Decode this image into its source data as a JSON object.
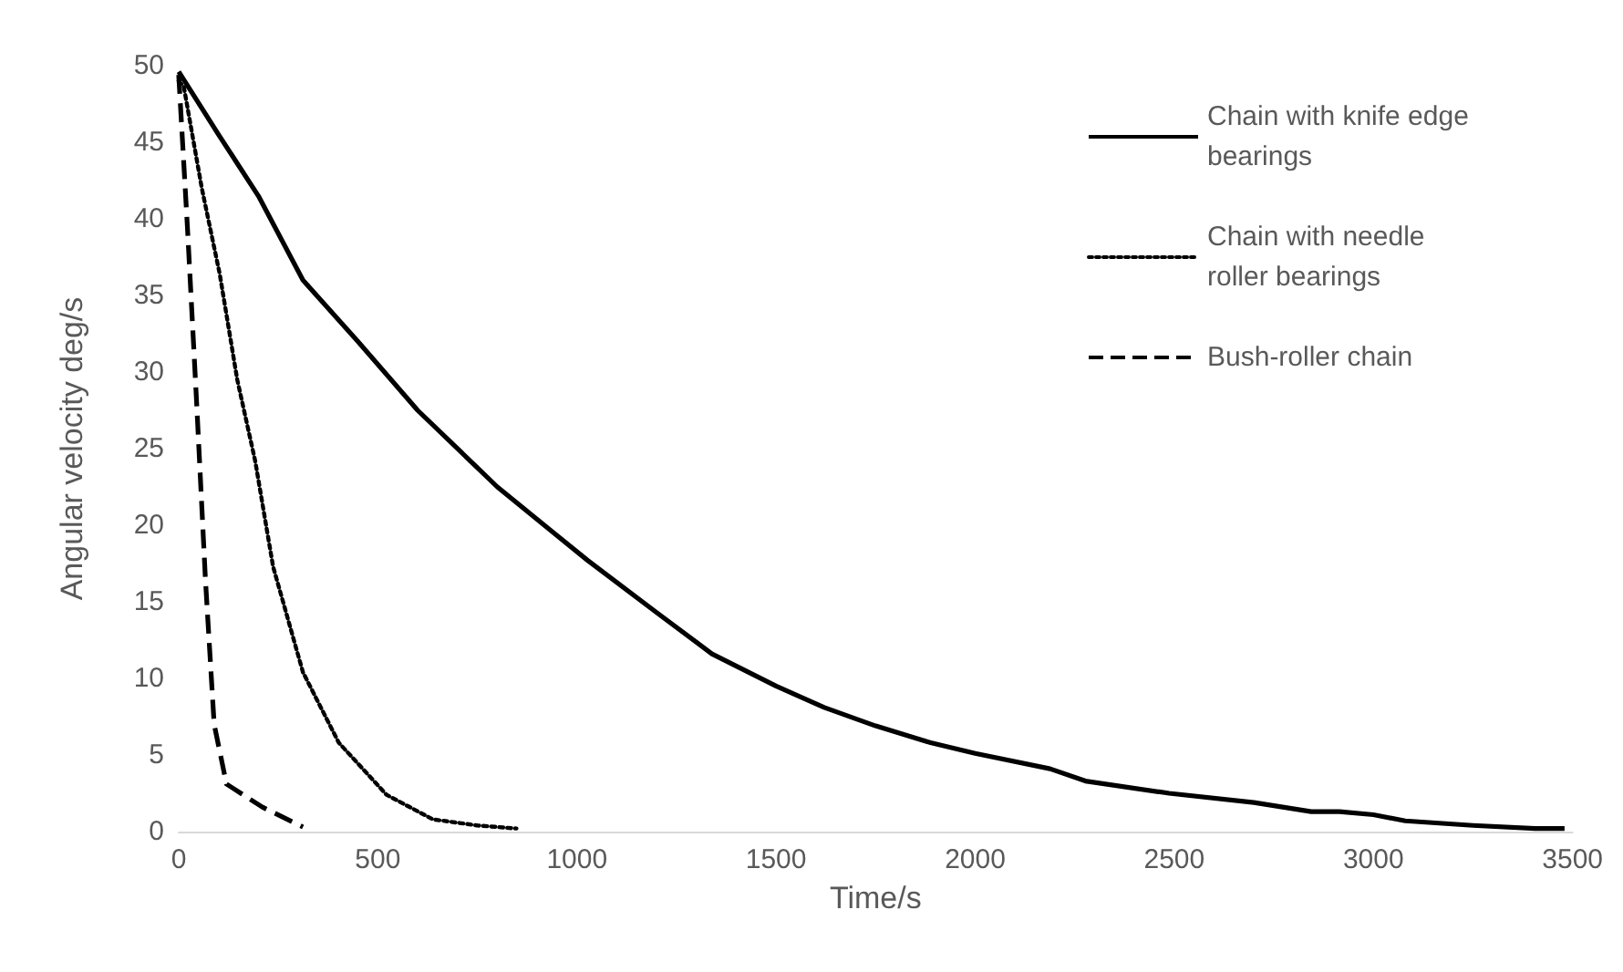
{
  "chart_data": {
    "type": "line",
    "xlabel": "Time/s",
    "ylabel": "Angular velocity deg/s",
    "xlim": [
      0,
      3500
    ],
    "ylim": [
      0,
      50
    ],
    "xticks": [
      0,
      500,
      1000,
      1500,
      2000,
      2500,
      3000,
      3500
    ],
    "yticks": [
      0,
      5,
      10,
      15,
      20,
      25,
      30,
      35,
      40,
      45,
      50
    ],
    "grid": false,
    "legend": "top right",
    "marker": "none",
    "series": [
      {
        "name": "Chain with knife edge bearings",
        "color": "#000000",
        "line_style": "solid",
        "x": [
          0,
          100,
          200,
          312,
          450,
          600,
          800,
          937,
          1027,
          1200,
          1339,
          1500,
          1621,
          1750,
          1888,
          2000,
          2188,
          2277,
          2487,
          2700,
          2844,
          2915,
          3000,
          3080,
          3250,
          3406,
          3480
        ],
        "values": [
          49.6,
          45.5,
          41.5,
          36,
          32,
          27.5,
          22.5,
          19.6,
          17.7,
          14.3,
          11.6,
          9.5,
          8.1,
          6.9,
          5.8,
          5.1,
          4.1,
          3.3,
          2.5,
          1.9,
          1.3,
          1.3,
          1.1,
          0.7,
          0.4,
          0.2,
          0.2
        ]
      },
      {
        "name": "Chain with needle roller bearings",
        "color": "#000000",
        "line_style": "dotted",
        "x": [
          0,
          13,
          58,
          103,
          147,
          192,
          237,
          312,
          402,
          522,
          638,
          750,
          848
        ],
        "values": [
          49,
          48.6,
          42,
          36.4,
          29.5,
          24.2,
          17.3,
          10.4,
          5.8,
          2.4,
          0.8,
          0.4,
          0.2
        ]
      },
      {
        "name": "Bush-roller chain",
        "color": "#000000",
        "line_style": "dashed",
        "x": [
          0,
          22,
          45,
          67,
          89,
          120,
          210,
          312
        ],
        "values": [
          49.4,
          39.4,
          28,
          16.5,
          7,
          3.1,
          1.6,
          0.3
        ]
      }
    ]
  }
}
